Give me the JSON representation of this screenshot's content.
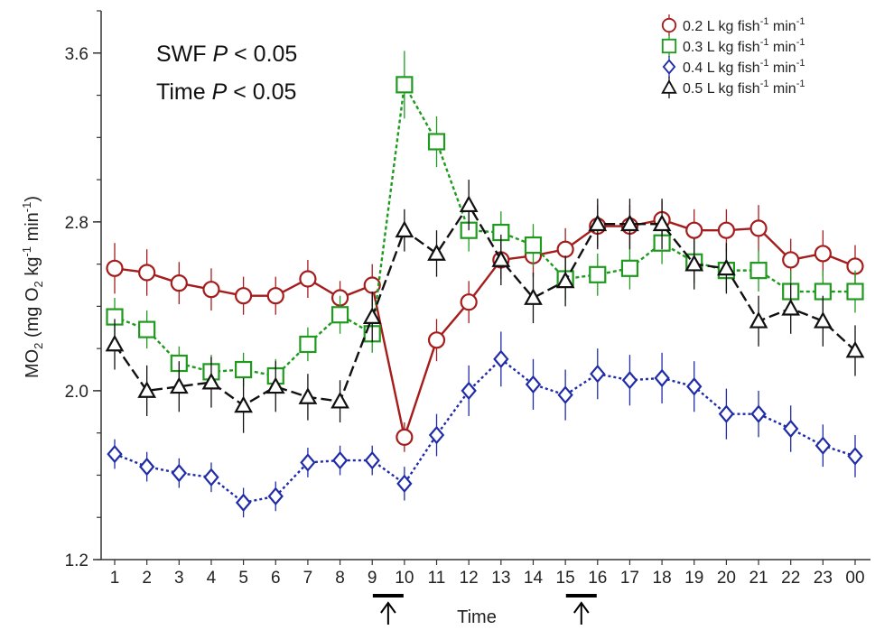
{
  "chart_data": {
    "type": "line",
    "xlabel": "Time",
    "ylabel_main": "MO",
    "ylabel_sub": "2",
    "ylabel_units_open": " (mg O",
    "ylabel_units_sub": "2",
    "ylabel_units_mid": " kg",
    "ylabel_units_sup": "-1",
    "ylabel_units_end": " min",
    "ylabel_units_sup2": "-1",
    "ylabel_units_close": ")",
    "ylim": [
      1.2,
      3.8
    ],
    "yticks": [
      1.2,
      2.0,
      2.8,
      3.6
    ],
    "ytick_labels": [
      "1.2",
      "2.0",
      "2.8",
      "3.6"
    ],
    "x": [
      "1",
      "2",
      "3",
      "4",
      "5",
      "6",
      "7",
      "8",
      "9",
      "10",
      "11",
      "12",
      "13",
      "14",
      "15",
      "16",
      "17",
      "18",
      "19",
      "20",
      "21",
      "22",
      "23",
      "00"
    ],
    "annotations": [
      {
        "label": "SWF",
        "italic": "P",
        "rest": " < 0.05"
      },
      {
        "label": "Time",
        "italic": "P",
        "rest": " < 0.05"
      }
    ],
    "feeding_marks": [
      "10",
      "16"
    ],
    "legend": {
      "position": "top-right"
    },
    "series": [
      {
        "name": "0.2 L kg fish",
        "name_sup": "-1",
        "name_end": " min",
        "name_sup2": "-1",
        "color": "#a51c1c",
        "marker": "circle",
        "dash": "solid",
        "values": [
          2.58,
          2.56,
          2.51,
          2.48,
          2.45,
          2.45,
          2.53,
          2.44,
          2.5,
          1.78,
          2.24,
          2.42,
          2.62,
          2.64,
          2.67,
          2.78,
          2.78,
          2.81,
          2.76,
          2.76,
          2.77,
          2.62,
          2.65,
          2.59
        ],
        "errors": [
          0.12,
          0.11,
          0.1,
          0.1,
          0.09,
          0.09,
          0.09,
          0.08,
          0.1,
          0.07,
          0.1,
          0.1,
          0.09,
          0.1,
          0.1,
          0.1,
          0.1,
          0.09,
          0.1,
          0.1,
          0.11,
          0.1,
          0.11,
          0.1
        ]
      },
      {
        "name": "0.3 L kg fish",
        "name_sup": "-1",
        "name_end": " min",
        "name_sup2": "-1",
        "color": "#1f9a1f",
        "marker": "square",
        "dash": "4 3",
        "values": [
          2.35,
          2.29,
          2.13,
          2.09,
          2.1,
          2.07,
          2.22,
          2.36,
          2.27,
          3.45,
          3.18,
          2.76,
          2.75,
          2.69,
          2.53,
          2.55,
          2.58,
          2.7,
          2.61,
          2.57,
          2.57,
          2.47,
          2.47,
          2.47
        ],
        "errors": [
          0.09,
          0.09,
          0.08,
          0.08,
          0.08,
          0.08,
          0.08,
          0.09,
          0.09,
          0.16,
          0.12,
          0.1,
          0.1,
          0.1,
          0.1,
          0.1,
          0.1,
          0.1,
          0.1,
          0.1,
          0.1,
          0.1,
          0.1,
          0.1
        ]
      },
      {
        "name": "0.4 L kg fish",
        "name_sup": "-1",
        "name_end": " min",
        "name_sup2": "-1",
        "color": "#1f2ba8",
        "marker": "diamond",
        "dash": "3 3",
        "values": [
          1.7,
          1.64,
          1.61,
          1.59,
          1.47,
          1.5,
          1.66,
          1.67,
          1.67,
          1.56,
          1.79,
          2.0,
          2.15,
          2.03,
          1.98,
          2.08,
          2.05,
          2.06,
          2.02,
          1.89,
          1.89,
          1.82,
          1.74,
          1.69
        ],
        "errors": [
          0.07,
          0.07,
          0.07,
          0.07,
          0.07,
          0.07,
          0.07,
          0.07,
          0.07,
          0.08,
          0.1,
          0.12,
          0.13,
          0.12,
          0.12,
          0.12,
          0.12,
          0.12,
          0.12,
          0.12,
          0.11,
          0.11,
          0.1,
          0.1
        ]
      },
      {
        "name": "0.5 L kg fish",
        "name_sup": "-1",
        "name_end": " min",
        "name_sup2": "-1",
        "color": "#111111",
        "marker": "triangle",
        "dash": "12 5",
        "values": [
          2.22,
          2.0,
          2.02,
          2.04,
          1.93,
          2.02,
          1.97,
          1.95,
          2.35,
          2.76,
          2.65,
          2.88,
          2.62,
          2.44,
          2.52,
          2.79,
          2.79,
          2.79,
          2.6,
          2.58,
          2.33,
          2.39,
          2.33,
          2.19
        ],
        "errors": [
          0.12,
          0.12,
          0.12,
          0.12,
          0.13,
          0.12,
          0.11,
          0.1,
          0.12,
          0.1,
          0.11,
          0.12,
          0.12,
          0.12,
          0.12,
          0.12,
          0.12,
          0.12,
          0.12,
          0.12,
          0.12,
          0.12,
          0.12,
          0.12
        ]
      }
    ]
  }
}
